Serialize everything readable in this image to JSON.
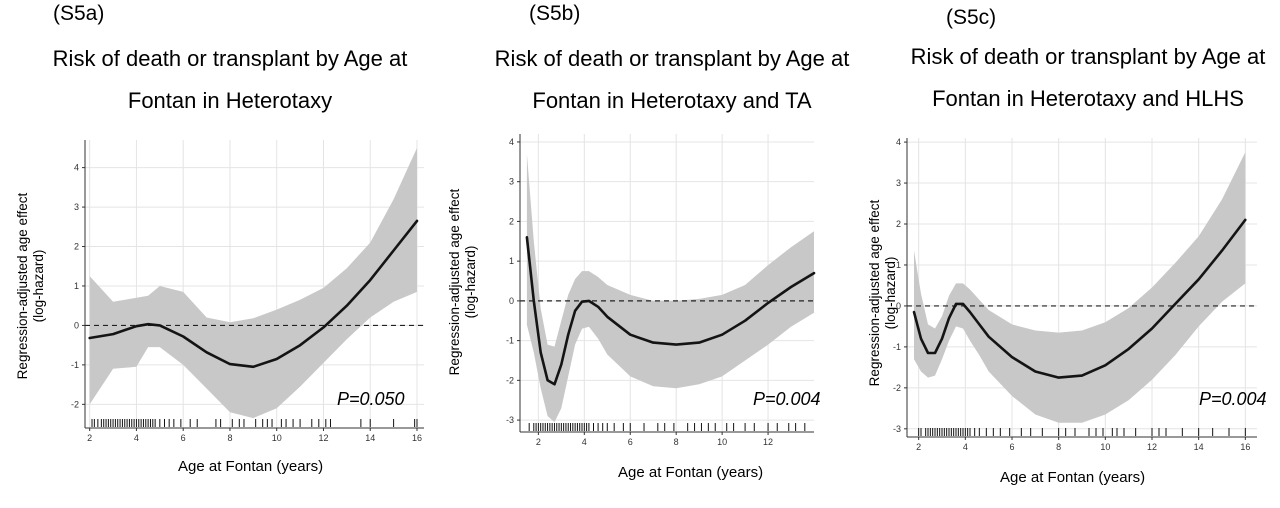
{
  "chart_data": [
    {
      "type": "line",
      "panel_label": "(S5a)",
      "title_line1": "Risk of death or transplant by Age at",
      "title_line2": "Fontan in Heterotaxy",
      "xlabel": "Age at Fontan (years)",
      "ylabel_line1": "Regression-adjusted age effect",
      "ylabel_line2": "(log-hazard)",
      "p_value": "P=0.050",
      "xlim": [
        1.8,
        16.3
      ],
      "ylim": [
        -2.6,
        4.7
      ],
      "xticks": [
        2,
        4,
        6,
        8,
        10,
        12,
        14,
        16
      ],
      "yticks": [
        -2,
        -1,
        0,
        1,
        2,
        3,
        4
      ],
      "grid": true,
      "reference_line": 0,
      "series": [
        {
          "x": [
            2.0,
            3.0,
            4.0,
            4.5,
            5.0,
            6.0,
            7.0,
            8.0,
            9.0,
            10.0,
            11.0,
            12.0,
            13.0,
            14.0,
            15.0,
            16.0
          ],
          "y": [
            -0.32,
            -0.22,
            -0.02,
            0.03,
            0.0,
            -0.28,
            -0.68,
            -0.98,
            -1.05,
            -0.85,
            -0.5,
            -0.05,
            0.5,
            1.15,
            1.9,
            2.65
          ],
          "lower": [
            -2.0,
            -1.1,
            -1.05,
            -0.55,
            -0.55,
            -1.0,
            -1.6,
            -2.2,
            -2.35,
            -2.1,
            -1.55,
            -0.95,
            -0.35,
            0.2,
            0.6,
            0.85
          ],
          "upper": [
            1.25,
            0.6,
            0.7,
            0.75,
            1.0,
            0.85,
            0.2,
            0.08,
            0.18,
            0.4,
            0.65,
            0.95,
            1.45,
            2.1,
            3.2,
            4.5
          ]
        }
      ],
      "rug": [
        2.1,
        2.2,
        2.35,
        2.5,
        2.6,
        2.7,
        2.8,
        2.9,
        3.0,
        3.1,
        3.2,
        3.3,
        3.4,
        3.5,
        3.6,
        3.7,
        3.8,
        3.9,
        4.0,
        4.1,
        4.2,
        4.3,
        4.4,
        4.5,
        4.6,
        4.7,
        4.8,
        5.0,
        5.2,
        5.4,
        5.6,
        5.9,
        6.3,
        6.6,
        7.4,
        7.6,
        8.1,
        8.4,
        8.6,
        9.1,
        9.4,
        9.6,
        9.8,
        10.2,
        10.4,
        10.7,
        11.0,
        11.5,
        11.8,
        12.1,
        12.3,
        13.6,
        14.0,
        15.0,
        15.9,
        16.0
      ]
    },
    {
      "type": "line",
      "panel_label": "(S5b)",
      "title_line1": "Risk of death or transplant by Age at",
      "title_line2": "Fontan in Heterotaxy and TA",
      "xlabel": "Age at Fontan (years)",
      "ylabel_line1": "Regression-adjusted age effect",
      "ylabel_line2": "(log-hazard)",
      "p_value": "P=0.004",
      "xlim": [
        1.2,
        14.0
      ],
      "ylim": [
        -3.3,
        4.2
      ],
      "xticks": [
        2,
        4,
        6,
        8,
        10,
        12
      ],
      "yticks": [
        -3,
        -2,
        -1,
        0,
        1,
        2,
        3,
        4
      ],
      "grid": true,
      "reference_line": 0,
      "series": [
        {
          "x": [
            1.5,
            1.8,
            2.1,
            2.4,
            2.7,
            3.0,
            3.3,
            3.6,
            3.9,
            4.2,
            4.6,
            5.0,
            6.0,
            7.0,
            8.0,
            9.0,
            10.0,
            11.0,
            12.0,
            13.0,
            14.0
          ],
          "y": [
            1.6,
            0.0,
            -1.3,
            -2.0,
            -2.1,
            -1.6,
            -0.85,
            -0.25,
            -0.02,
            0.0,
            -0.15,
            -0.4,
            -0.85,
            -1.05,
            -1.1,
            -1.05,
            -0.85,
            -0.5,
            -0.05,
            0.35,
            0.7
          ],
          "lower": [
            -0.6,
            -1.3,
            -2.2,
            -2.9,
            -3.05,
            -2.7,
            -1.9,
            -1.1,
            -0.7,
            -0.65,
            -0.95,
            -1.35,
            -1.9,
            -2.15,
            -2.2,
            -2.1,
            -1.9,
            -1.5,
            -1.1,
            -0.65,
            -0.3
          ],
          "upper": [
            3.7,
            1.5,
            -0.2,
            -1.1,
            -1.15,
            -0.5,
            0.15,
            0.55,
            0.75,
            0.75,
            0.6,
            0.4,
            0.15,
            0.0,
            0.0,
            0.05,
            0.15,
            0.4,
            0.9,
            1.35,
            1.75
          ]
        }
      ],
      "rug": [
        1.6,
        1.8,
        1.9,
        2.0,
        2.1,
        2.2,
        2.3,
        2.4,
        2.5,
        2.6,
        2.7,
        2.8,
        2.9,
        3.0,
        3.1,
        3.2,
        3.3,
        3.4,
        3.5,
        3.6,
        3.7,
        3.8,
        3.9,
        4.0,
        4.1,
        4.2,
        4.4,
        4.6,
        4.8,
        5.0,
        5.3,
        5.7,
        6.0,
        6.6,
        7.2,
        7.5,
        7.9,
        8.5,
        8.8,
        9.1,
        9.4,
        9.7,
        10.2,
        10.5,
        11.0,
        11.4,
        12.0,
        12.4,
        12.9,
        13.2,
        13.6
      ]
    },
    {
      "type": "line",
      "panel_label": "(S5c)",
      "title_line1": "Risk of death or transplant by Age at",
      "title_line2": "Fontan in Heterotaxy and HLHS",
      "xlabel": "Age at Fontan (years)",
      "ylabel_line1": "Regression-adjusted age effect",
      "ylabel_line2": "(log-hazard)",
      "p_value": "P=0.004",
      "xlim": [
        1.5,
        16.5
      ],
      "ylim": [
        -3.2,
        4.1
      ],
      "xticks": [
        2,
        4,
        6,
        8,
        10,
        12,
        14,
        16
      ],
      "yticks": [
        -3,
        -2,
        -1,
        0,
        1,
        2,
        3,
        4
      ],
      "grid": true,
      "reference_line": 0,
      "series": [
        {
          "x": [
            1.8,
            2.1,
            2.4,
            2.7,
            3.0,
            3.3,
            3.6,
            3.9,
            4.2,
            4.6,
            5.0,
            6.0,
            7.0,
            8.0,
            9.0,
            10.0,
            11.0,
            12.0,
            13.0,
            14.0,
            15.0,
            16.0
          ],
          "y": [
            -0.15,
            -0.8,
            -1.15,
            -1.15,
            -0.8,
            -0.3,
            0.05,
            0.05,
            -0.15,
            -0.45,
            -0.75,
            -1.25,
            -1.6,
            -1.75,
            -1.7,
            -1.45,
            -1.05,
            -0.55,
            0.05,
            0.65,
            1.35,
            2.1
          ],
          "lower": [
            -1.3,
            -1.6,
            -1.75,
            -1.7,
            -1.3,
            -0.85,
            -0.5,
            -0.55,
            -0.85,
            -1.2,
            -1.6,
            -2.2,
            -2.65,
            -2.85,
            -2.85,
            -2.65,
            -2.3,
            -1.8,
            -1.2,
            -0.5,
            0.1,
            0.55
          ],
          "upper": [
            1.35,
            0.3,
            -0.45,
            -0.55,
            -0.25,
            0.25,
            0.55,
            0.55,
            0.4,
            0.15,
            -0.1,
            -0.45,
            -0.6,
            -0.65,
            -0.6,
            -0.4,
            -0.05,
            0.45,
            1.05,
            1.7,
            2.6,
            3.75
          ]
        }
      ],
      "rug": [
        2.0,
        2.1,
        2.3,
        2.4,
        2.5,
        2.6,
        2.7,
        2.8,
        2.9,
        3.0,
        3.1,
        3.2,
        3.3,
        3.4,
        3.5,
        3.6,
        3.7,
        3.8,
        3.9,
        4.0,
        4.1,
        4.2,
        4.4,
        4.6,
        4.9,
        5.2,
        5.5,
        5.9,
        6.4,
        6.8,
        7.3,
        8.0,
        8.3,
        8.7,
        9.3,
        9.6,
        9.9,
        10.3,
        10.5,
        10.8,
        11.3,
        12.0,
        12.3,
        12.6,
        13.3,
        14.0,
        14.6,
        15.3,
        16.0
      ]
    }
  ],
  "colors": {
    "band": "#c8c8c8",
    "line": "#141414",
    "grid": "#e4e4e4",
    "axis": "#333333",
    "reference": "#222222"
  }
}
